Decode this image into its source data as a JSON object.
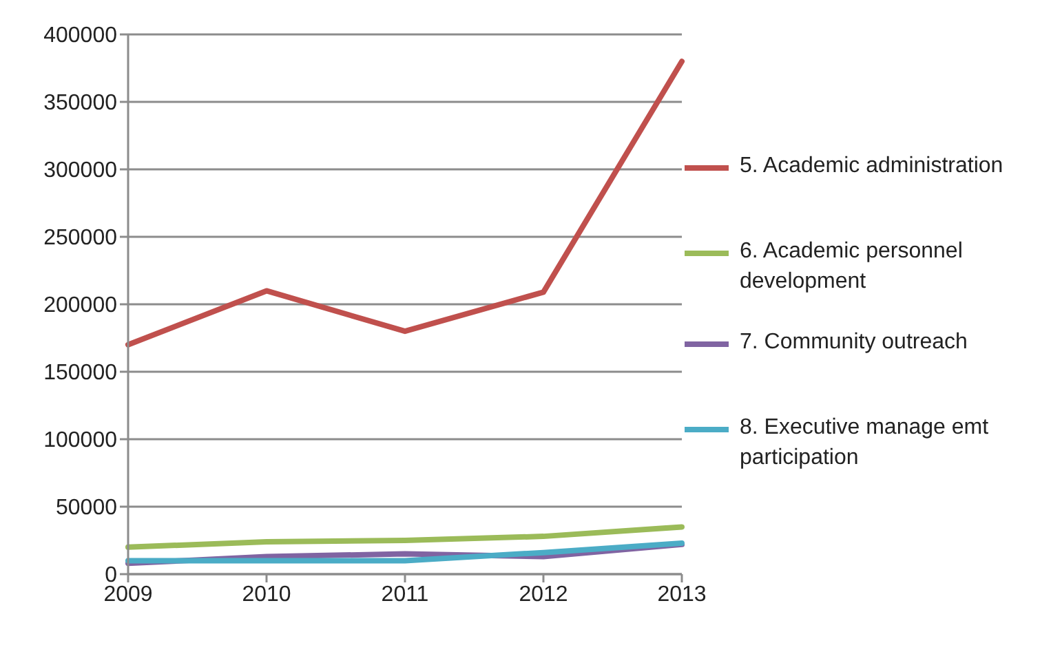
{
  "chart_data": {
    "type": "line",
    "categories": [
      "2009",
      "2010",
      "2011",
      "2012",
      "2013"
    ],
    "series": [
      {
        "name": "5. Academic administration",
        "color": "#c0504d",
        "values": [
          170000,
          210000,
          180000,
          209000,
          380000
        ]
      },
      {
        "name": "6. Academic personnel development",
        "color": "#9bbb59",
        "values": [
          20000,
          24000,
          25000,
          28000,
          35000
        ]
      },
      {
        "name": "7. Community outreach",
        "color": "#8064a2",
        "values": [
          8000,
          13000,
          15000,
          13000,
          22000
        ]
      },
      {
        "name": "8. Executive manage emt participation",
        "color": "#4bacc6",
        "values": [
          10000,
          10000,
          10000,
          16000,
          23000
        ]
      }
    ],
    "ylim": [
      0,
      400000
    ],
    "yticks": [
      0,
      50000,
      100000,
      150000,
      200000,
      250000,
      300000,
      350000,
      400000
    ],
    "grid": "y",
    "legend": "right",
    "marker": "none",
    "line_style": "solid"
  }
}
